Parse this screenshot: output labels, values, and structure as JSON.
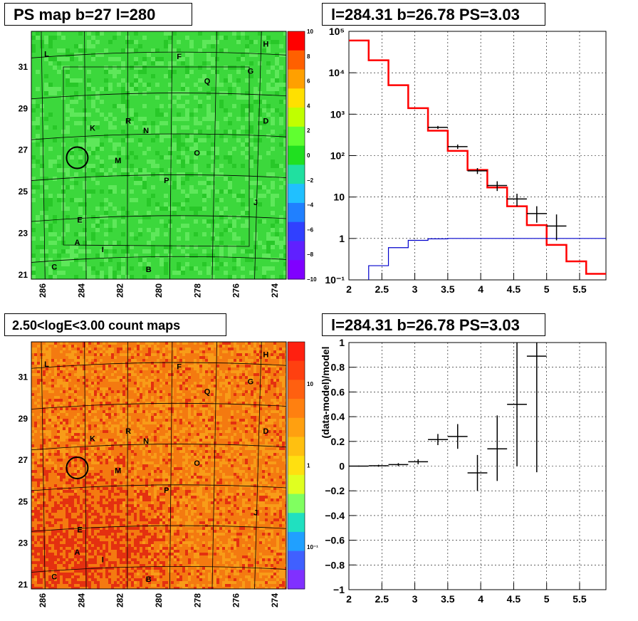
{
  "panels": {
    "ps_map_title": "PS map b=27 l=280",
    "spectrum_title": "l=284.31 b=26.78 PS=3.03",
    "count_map_title": "2.50<logE<3.00 count maps",
    "residual_title": "l=284.31 b=26.78 PS=3.03"
  },
  "maps": {
    "lon_ticks": [
      "286",
      "284",
      "282",
      "280",
      "278",
      "276",
      "274"
    ],
    "lat_ticks": [
      "21",
      "23",
      "25",
      "27",
      "29",
      "31"
    ],
    "source_labels": [
      "L",
      "F",
      "H",
      "G",
      "Q",
      "D",
      "K",
      "R",
      "N",
      "M",
      "O",
      "P",
      "J",
      "E",
      "A",
      "I",
      "C",
      "B"
    ],
    "ps_colorbar_ticks": [
      "10",
      "8",
      "6",
      "4",
      "2",
      "0",
      "−2",
      "−4",
      "−6",
      "−8",
      "−10"
    ],
    "count_colorbar_ticks": [
      "10",
      "1",
      "10⁻¹"
    ],
    "ps_colors": {
      "base": "#3cd83c",
      "light": "#5ee85a",
      "dark": "#28c828"
    },
    "count_colors": {
      "base": "#f47a10",
      "hot": "#e43010",
      "warm": "#f89c18"
    }
  },
  "chart_data": [
    {
      "type": "line",
      "panel": "spectrum",
      "title": "l=284.31 b=26.78 PS=3.03",
      "xlabel": "",
      "ylabel": "",
      "yscale": "log",
      "xlim": [
        2,
        5.9
      ],
      "ylim": [
        0.1,
        100000
      ],
      "x_ticks": [
        "2",
        "2.5",
        "3",
        "3.5",
        "4",
        "4.5",
        "5",
        "5.5"
      ],
      "y_ticks": [
        "10⁻¹",
        "1",
        "10",
        "10²",
        "10³",
        "10⁴",
        "10⁵"
      ],
      "series": [
        {
          "color": "#ff0000",
          "style": "step",
          "edges": [
            2.0,
            2.3,
            2.6,
            2.9,
            3.2,
            3.5,
            3.8,
            4.1,
            4.4,
            4.7,
            5.0,
            5.3,
            5.6,
            5.9
          ],
          "values": [
            60000,
            20000,
            5000,
            1400,
            400,
            130,
            45,
            17,
            6,
            2.1,
            0.7,
            0.28,
            0.14
          ]
        },
        {
          "color": "#0000cc",
          "style": "step",
          "edges": [
            2.0,
            2.3,
            2.6,
            2.9,
            3.2,
            3.5,
            3.8,
            4.1,
            4.4,
            4.7,
            5.0,
            5.3,
            5.6,
            5.9
          ],
          "values": [
            0.05,
            0.22,
            0.6,
            0.9,
            0.98,
            1.0,
            1.0,
            1.0,
            1.0,
            1.0,
            1.0,
            1.0,
            1.0
          ]
        },
        {
          "color": "#000000",
          "style": "errorbar",
          "x": [
            3.35,
            3.65,
            3.95,
            4.25,
            4.55,
            4.85,
            5.15
          ],
          "xerr": [
            0.15,
            0.15,
            0.15,
            0.15,
            0.15,
            0.15,
            0.15
          ],
          "y": [
            480,
            165,
            43,
            19,
            9,
            4,
            2
          ],
          "ylow": [
            440,
            145,
            36,
            14,
            6,
            2.4,
            0.9
          ],
          "yhigh": [
            520,
            185,
            50,
            24,
            12,
            6,
            3.8
          ]
        }
      ]
    },
    {
      "type": "scatter",
      "panel": "residual",
      "title": "l=284.31 b=26.78 PS=3.03",
      "xlabel": "",
      "ylabel": "(data-model)/model",
      "xlim": [
        2,
        5.9
      ],
      "ylim": [
        -1,
        1
      ],
      "x_ticks": [
        "2",
        "2.5",
        "3",
        "3.5",
        "4",
        "4.5",
        "5",
        "5.5"
      ],
      "y_ticks": [
        "−1",
        "−0.8",
        "−0.6",
        "−0.4",
        "−0.2",
        "0",
        "0.2",
        "0.4",
        "0.6",
        "0.8",
        "1"
      ],
      "series": [
        {
          "color": "#000000",
          "style": "errorbar",
          "x": [
            2.15,
            2.45,
            2.75,
            3.05,
            3.35,
            3.65,
            3.95,
            4.25,
            4.55,
            4.85
          ],
          "xerr": [
            0.15,
            0.15,
            0.15,
            0.15,
            0.15,
            0.15,
            0.15,
            0.15,
            0.15,
            0.15
          ],
          "y": [
            0.0,
            0.003,
            0.012,
            0.035,
            0.215,
            0.24,
            -0.055,
            0.14,
            0.5,
            0.89
          ],
          "ylow": [
            -0.004,
            -0.005,
            0.0,
            0.015,
            0.17,
            0.14,
            -0.2,
            -0.12,
            0.0,
            -0.05
          ],
          "yhigh": [
            0.004,
            0.011,
            0.024,
            0.055,
            0.26,
            0.34,
            0.09,
            0.41,
            1.0,
            1.0
          ]
        }
      ]
    }
  ]
}
